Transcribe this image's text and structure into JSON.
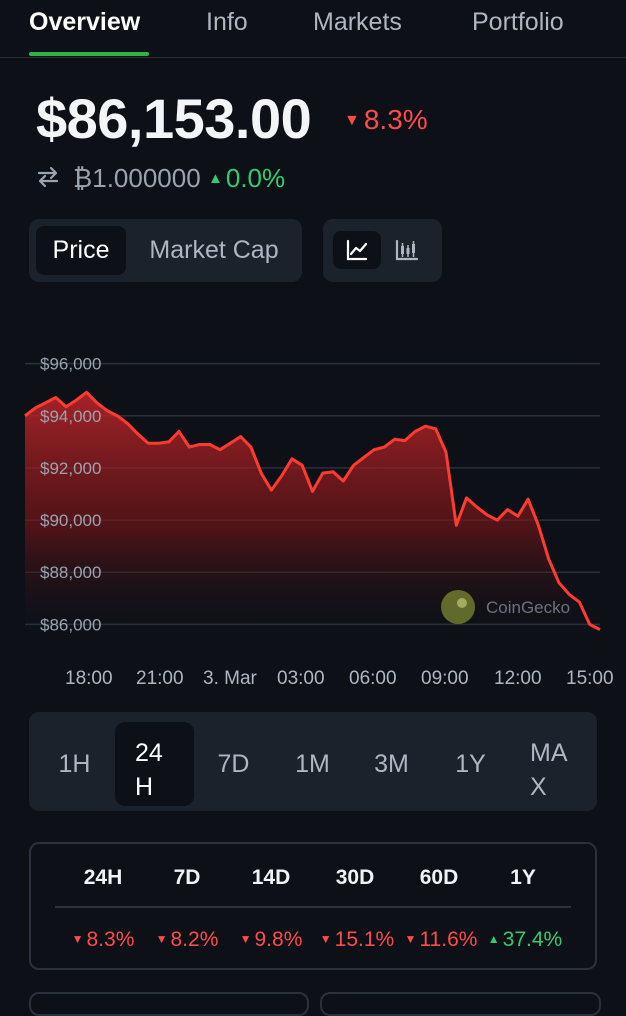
{
  "tabs": [
    {
      "label": "Overview",
      "active": true
    },
    {
      "label": "Info"
    },
    {
      "label": "Markets"
    },
    {
      "label": "Portfolio"
    }
  ],
  "price": {
    "value": "$86,153.00",
    "change": "8.3%",
    "change_direction": "down",
    "btc_amount": "₿1.000000",
    "btc_change": "0.0%",
    "btc_change_direction": "up"
  },
  "metric_toggle": {
    "options": [
      "Price",
      "Market Cap"
    ],
    "selected": "Price"
  },
  "chart_type_toggle": {
    "options": [
      "line-chart-icon",
      "candlestick-chart-icon"
    ],
    "selected": "line-chart-icon"
  },
  "chart_data": {
    "type": "area",
    "y_tick_labels": [
      "$96,000",
      "$94,000",
      "$92,000",
      "$90,000",
      "$88,000",
      "$86,000"
    ],
    "y_ticks": [
      96000,
      94000,
      92000,
      90000,
      88000,
      86000
    ],
    "x_tick_labels": [
      "18:00",
      "21:00",
      "3. Mar",
      "03:00",
      "06:00",
      "09:00",
      "12:00",
      "15:00"
    ],
    "ylim": [
      85400,
      96600
    ],
    "watermark": "CoinGecko",
    "line_color": "#ff3b30",
    "series": [
      {
        "values": [
          94000,
          94300,
          94500,
          94700,
          94350,
          94600,
          94900,
          94500,
          94200,
          94000,
          93700,
          93300,
          92950,
          92950,
          93000,
          93400,
          92800,
          92900,
          92900,
          92700,
          92950,
          93200,
          92800,
          91800,
          91150,
          91700,
          92350,
          92100,
          91100,
          91800,
          91850,
          91500,
          92100,
          92400,
          92700,
          92800,
          93100,
          93050,
          93400,
          93600,
          93500,
          92600,
          89800,
          90850,
          90500,
          90200,
          90000,
          90400,
          90150,
          90800,
          89800,
          88500,
          87600,
          87150,
          86850,
          86000,
          85800
        ]
      }
    ]
  },
  "range_selector": {
    "options": [
      "1H",
      "24H",
      "7D",
      "1M",
      "3M",
      "1Y",
      "MAX"
    ],
    "selected": "24H"
  },
  "performance": {
    "periods": [
      "24H",
      "7D",
      "14D",
      "30D",
      "60D",
      "1Y"
    ],
    "values": [
      {
        "value": "8.3%",
        "direction": "down"
      },
      {
        "value": "8.2%",
        "direction": "down"
      },
      {
        "value": "9.8%",
        "direction": "down"
      },
      {
        "value": "15.1%",
        "direction": "down"
      },
      {
        "value": "11.6%",
        "direction": "down"
      },
      {
        "value": "37.4%",
        "direction": "up"
      }
    ]
  },
  "colors": {
    "accent": "#2fb344",
    "negative": "#ff4a4a",
    "positive": "#2ecc71",
    "background": "#0d1117",
    "panel": "#1c222b"
  }
}
